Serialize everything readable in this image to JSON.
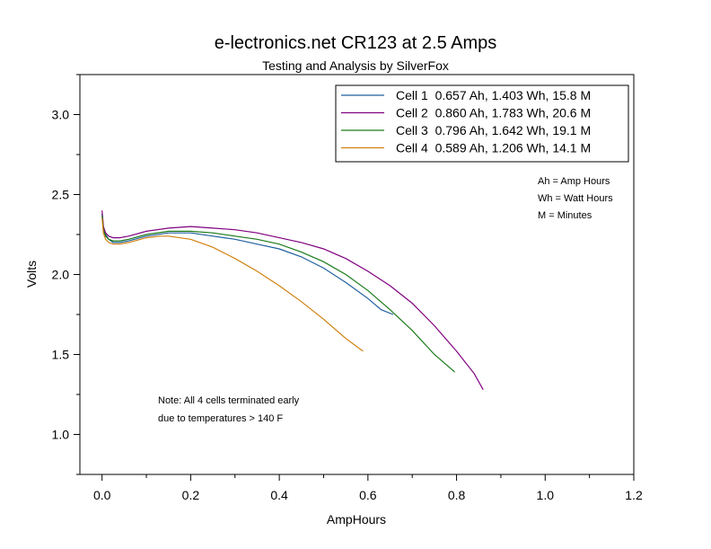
{
  "chart_data": {
    "type": "line",
    "title": "e-lectronics.net CR123 at 2.5 Amps",
    "subtitle": "Testing and Analysis by SilverFox",
    "xlabel": "AmpHours",
    "ylabel": "Volts",
    "xlim": [
      -0.05,
      1.2
    ],
    "ylim": [
      0.75,
      3.25
    ],
    "xticks": [
      "0.0",
      "0.2",
      "0.4",
      "0.6",
      "0.8",
      "1.0",
      "1.2"
    ],
    "yticks": [
      "1.0",
      "1.5",
      "2.0",
      "2.5",
      "3.0"
    ],
    "grid": false,
    "legend_position": "top-right",
    "series": [
      {
        "name": "Cell 1  0.657 Ah, 1.403 Wh, 15.8 M",
        "color": "#1f5f9f",
        "x": [
          0.0,
          0.003,
          0.008,
          0.015,
          0.025,
          0.04,
          0.06,
          0.1,
          0.15,
          0.2,
          0.25,
          0.3,
          0.35,
          0.4,
          0.45,
          0.5,
          0.55,
          0.6,
          0.63,
          0.657
        ],
        "y": [
          2.38,
          2.29,
          2.25,
          2.22,
          2.2,
          2.2,
          2.21,
          2.24,
          2.26,
          2.26,
          2.24,
          2.22,
          2.19,
          2.16,
          2.11,
          2.04,
          1.95,
          1.85,
          1.78,
          1.75
        ]
      },
      {
        "name": "Cell 2  0.860 Ah, 1.783 Wh, 20.6 M",
        "color": "#800080",
        "x": [
          0.0,
          0.003,
          0.008,
          0.015,
          0.025,
          0.04,
          0.06,
          0.1,
          0.15,
          0.2,
          0.25,
          0.3,
          0.35,
          0.4,
          0.45,
          0.5,
          0.55,
          0.6,
          0.65,
          0.7,
          0.75,
          0.8,
          0.84,
          0.86
        ],
        "y": [
          2.4,
          2.3,
          2.26,
          2.24,
          2.23,
          2.23,
          2.24,
          2.27,
          2.29,
          2.3,
          2.29,
          2.28,
          2.26,
          2.23,
          2.2,
          2.16,
          2.1,
          2.02,
          1.93,
          1.82,
          1.68,
          1.52,
          1.38,
          1.28
        ]
      },
      {
        "name": "Cell 3  0.796 Ah, 1.642 Wh, 19.1 M",
        "color": "#1a7a1a",
        "x": [
          0.0,
          0.003,
          0.008,
          0.015,
          0.025,
          0.04,
          0.06,
          0.1,
          0.15,
          0.2,
          0.25,
          0.3,
          0.35,
          0.4,
          0.45,
          0.5,
          0.55,
          0.6,
          0.65,
          0.7,
          0.75,
          0.796
        ],
        "y": [
          2.37,
          2.28,
          2.24,
          2.22,
          2.21,
          2.21,
          2.22,
          2.25,
          2.27,
          2.27,
          2.26,
          2.24,
          2.22,
          2.19,
          2.14,
          2.08,
          2.0,
          1.9,
          1.78,
          1.65,
          1.5,
          1.39
        ]
      },
      {
        "name": "Cell 4  0.589 Ah, 1.206 Wh, 14.1 M",
        "color": "#d08010",
        "x": [
          0.0,
          0.003,
          0.008,
          0.015,
          0.025,
          0.04,
          0.06,
          0.1,
          0.13,
          0.15,
          0.2,
          0.25,
          0.3,
          0.35,
          0.4,
          0.45,
          0.5,
          0.55,
          0.589
        ],
        "y": [
          2.35,
          2.26,
          2.22,
          2.2,
          2.19,
          2.19,
          2.2,
          2.23,
          2.24,
          2.24,
          2.22,
          2.17,
          2.1,
          2.02,
          1.93,
          1.83,
          1.72,
          1.6,
          1.52
        ]
      }
    ],
    "annotations": [
      "Ah = Amp Hours",
      "Wh = Watt Hours",
      "M = Minutes",
      "Note:  All 4 cells terminated early",
      "due to temperatures > 140 F"
    ]
  }
}
